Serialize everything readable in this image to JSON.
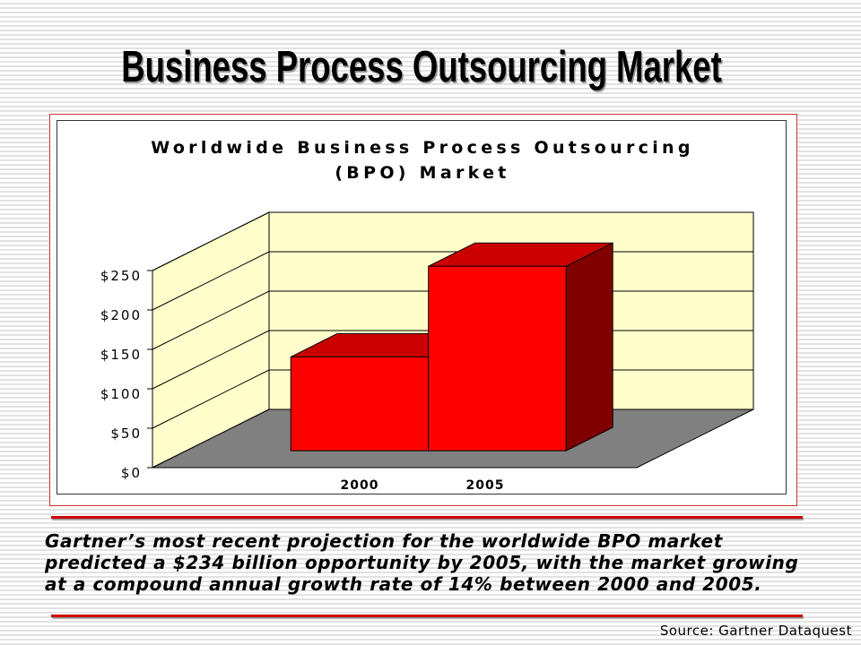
{
  "slide": {
    "title": "Business Process Outsourcing Market",
    "caption_lines": [
      "Gartner’s most recent projection for the worldwide BPO market",
      "predicted a $234 billion opportunity by 2005, with the market growing",
      "at a compound annual growth rate of 14% between 2000 and 2005."
    ],
    "source": "Source: Gartner Dataquest"
  },
  "colors": {
    "accent_red": "#cc0000",
    "bar_front": "#ff0000",
    "bar_top": "#cc0000",
    "bar_side": "#800000",
    "wall": "#ffffcc",
    "floor": "#808080"
  },
  "chart_data": {
    "type": "bar",
    "3d": true,
    "title": [
      "Worldwide Business Process Outsourcing",
      "(BPO) Market"
    ],
    "categories": [
      "2000",
      "2005"
    ],
    "values": [
      119,
      234
    ],
    "ylim": [
      0,
      250
    ],
    "yticks": [
      0,
      50,
      100,
      150,
      200,
      250
    ],
    "ytick_labels": [
      "$0",
      "$50",
      "$100",
      "$150",
      "$200",
      "$250"
    ],
    "grid": true,
    "legend": false
  }
}
